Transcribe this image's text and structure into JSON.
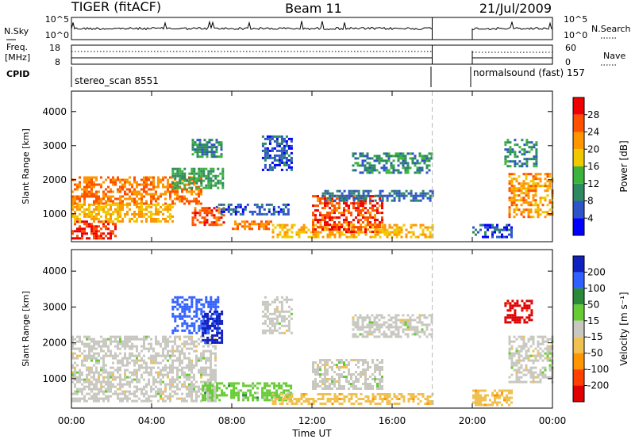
{
  "header": {
    "radar": "TIGER (fitACF)",
    "beam": "Beam 11",
    "date": "21/Jul/2009"
  },
  "panels": {
    "nsky": {
      "label": "N.Sky",
      "ticks": [
        "10^5",
        "10^0"
      ],
      "right_label": "N.Search"
    },
    "freq": {
      "label_line1": "Freq.",
      "label_line2": "[MHz]",
      "ticks_left": [
        "18",
        "8"
      ],
      "ticks_right": [
        "60",
        "0"
      ],
      "right_label": "Nave"
    },
    "cpid": {
      "label": "CPID",
      "segments": [
        "stereo_scan 8551",
        "normalsound (fast) 157"
      ]
    }
  },
  "chart_data": [
    {
      "type": "heatmap",
      "title": "",
      "xlabel": "Time UT",
      "ylabel": "Slant Range [km]",
      "xlim": [
        0,
        24
      ],
      "ylim": [
        180,
        4600
      ],
      "x_ticks": [
        "00:00",
        "04:00",
        "08:00",
        "12:00",
        "16:00",
        "20:00",
        "00:00"
      ],
      "y_ticks": [
        1000,
        2000,
        3000,
        4000
      ],
      "data_gap_hours": [
        18.0,
        20.0
      ],
      "colorbar": {
        "label": "Power [dB]",
        "ticks": [
          4,
          8,
          12,
          16,
          20,
          24,
          28
        ],
        "range": [
          0,
          32
        ],
        "colors": [
          "#0000ff",
          "#2e55c8",
          "#2d8a60",
          "#3cb43c",
          "#f0c800",
          "#ff9600",
          "#ff5000",
          "#f00000"
        ]
      },
      "regions": [
        {
          "t0": 0.0,
          "t1": 2.2,
          "r0": 300,
          "r1": 800,
          "level": 28
        },
        {
          "t0": 0.0,
          "t1": 6.5,
          "r0": 1300,
          "r1": 2100,
          "level": 24
        },
        {
          "t0": 0.0,
          "t1": 5.0,
          "r0": 800,
          "r1": 1300,
          "level": 20
        },
        {
          "t0": 5.0,
          "t1": 7.5,
          "r0": 1750,
          "r1": 2350,
          "level": 12
        },
        {
          "t0": 6.0,
          "t1": 7.5,
          "r0": 2700,
          "r1": 3200,
          "level": 10
        },
        {
          "t0": 6.0,
          "t1": 7.6,
          "r0": 700,
          "r1": 1200,
          "level": 27
        },
        {
          "t0": 7.2,
          "t1": 10.8,
          "r0": 1000,
          "r1": 1300,
          "level": 6
        },
        {
          "t0": 8.0,
          "t1": 10.0,
          "r0": 550,
          "r1": 800,
          "level": 24
        },
        {
          "t0": 9.5,
          "t1": 11.0,
          "r0": 2300,
          "r1": 3300,
          "level": 6
        },
        {
          "t0": 10.0,
          "t1": 18.0,
          "r0": 300,
          "r1": 700,
          "level": 20
        },
        {
          "t0": 12.0,
          "t1": 15.5,
          "r0": 500,
          "r1": 1550,
          "level": 27
        },
        {
          "t0": 12.5,
          "t1": 18.0,
          "r0": 1400,
          "r1": 1700,
          "level": 8
        },
        {
          "t0": 14.0,
          "t1": 18.0,
          "r0": 2200,
          "r1": 2800,
          "level": 10
        },
        {
          "t0": 20.0,
          "t1": 22.0,
          "r0": 300,
          "r1": 700,
          "level": 6
        },
        {
          "t0": 21.8,
          "t1": 24.0,
          "r0": 900,
          "r1": 2200,
          "level": 22
        },
        {
          "t0": 21.6,
          "t1": 23.2,
          "r0": 2400,
          "r1": 3200,
          "level": 10
        }
      ]
    },
    {
      "type": "heatmap",
      "title": "",
      "xlabel": "Time UT",
      "ylabel": "Slant Range [km]",
      "xlim": [
        0,
        24
      ],
      "ylim": [
        180,
        4600
      ],
      "x_ticks": [
        "00:00",
        "04:00",
        "08:00",
        "12:00",
        "16:00",
        "20:00",
        "00:00"
      ],
      "y_ticks": [
        1000,
        2000,
        3000,
        4000
      ],
      "data_gap_hours": [
        18.0,
        20.0
      ],
      "colorbar": {
        "label": "Velocity [m s⁻¹]",
        "ticks": [
          200,
          100,
          50,
          15,
          -15,
          -50,
          -100,
          -200
        ],
        "colors": [
          "#1020c0",
          "#3060ff",
          "#2a8a3a",
          "#66cc33",
          "#c8c8c0",
          "#f0c050",
          "#ff9600",
          "#ff4000",
          "#e00000"
        ]
      },
      "regions": [
        {
          "t0": 0.0,
          "t1": 7.2,
          "r0": 400,
          "r1": 2200,
          "level": 0
        },
        {
          "t0": 5.0,
          "t1": 7.3,
          "r0": 2300,
          "r1": 3300,
          "level": 150
        },
        {
          "t0": 6.5,
          "t1": 7.5,
          "r0": 2000,
          "r1": 2900,
          "level": 210
        },
        {
          "t0": 6.5,
          "t1": 11.0,
          "r0": 400,
          "r1": 900,
          "level": 30
        },
        {
          "t0": 9.5,
          "t1": 11.0,
          "r0": 2300,
          "r1": 3300,
          "level": 0
        },
        {
          "t0": 10.0,
          "t1": 18.0,
          "r0": 300,
          "r1": 600,
          "level": -45
        },
        {
          "t0": 12.0,
          "t1": 15.5,
          "r0": 700,
          "r1": 1550,
          "level": 0
        },
        {
          "t0": 14.0,
          "t1": 18.0,
          "r0": 2200,
          "r1": 2800,
          "level": 0
        },
        {
          "t0": 20.0,
          "t1": 22.0,
          "r0": 300,
          "r1": 700,
          "level": -45
        },
        {
          "t0": 21.8,
          "t1": 24.0,
          "r0": 900,
          "r1": 2200,
          "level": 0
        },
        {
          "t0": 21.6,
          "t1": 23.0,
          "r0": 2600,
          "r1": 3200,
          "level": -210
        }
      ]
    }
  ]
}
